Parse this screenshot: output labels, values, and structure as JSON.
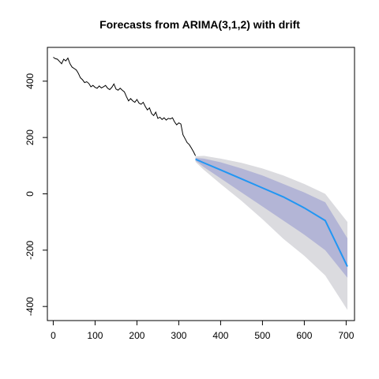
{
  "chart_data": {
    "type": "line",
    "title": "Forecasts from ARIMA(3,1,2) with drift",
    "xlabel": "",
    "ylabel": "",
    "xlim": [
      -14,
      720
    ],
    "ylim": [
      -450,
      520
    ],
    "x_ticks": [
      0,
      100,
      200,
      300,
      400,
      500,
      600,
      700
    ],
    "y_ticks": [
      -400,
      -200,
      0,
      200,
      400
    ],
    "grid": false,
    "legend": "none",
    "colors": {
      "history": "#000000",
      "forecast_mean": "#2196F3",
      "band_95": "#DBDBDF",
      "band_80": "#B3B5D6"
    },
    "history": {
      "x": [
        0,
        5,
        10,
        15,
        20,
        25,
        30,
        35,
        40,
        45,
        50,
        55,
        60,
        65,
        70,
        75,
        80,
        85,
        90,
        95,
        100,
        105,
        110,
        115,
        120,
        125,
        130,
        135,
        140,
        145,
        150,
        155,
        160,
        165,
        170,
        175,
        180,
        185,
        190,
        195,
        200,
        205,
        210,
        215,
        220,
        225,
        230,
        235,
        240,
        245,
        250,
        255,
        260,
        265,
        270,
        275,
        280,
        285,
        290,
        295,
        300,
        305,
        310,
        315,
        320,
        325,
        330,
        335,
        340
      ],
      "y": [
        485,
        480,
        478,
        470,
        462,
        478,
        472,
        482,
        462,
        450,
        445,
        440,
        428,
        412,
        405,
        395,
        398,
        392,
        380,
        385,
        378,
        375,
        383,
        376,
        380,
        385,
        375,
        370,
        378,
        390,
        372,
        368,
        375,
        368,
        362,
        345,
        330,
        338,
        330,
        325,
        335,
        322,
        318,
        325,
        310,
        298,
        305,
        285,
        278,
        290,
        268,
        272,
        264,
        270,
        262,
        268,
        266,
        270,
        255,
        245,
        252,
        248,
        210,
        196,
        182,
        175,
        163,
        150,
        135
      ]
    },
    "forecast": {
      "x": [
        340,
        360,
        400,
        450,
        500,
        550,
        600,
        650,
        703
      ],
      "mean": [
        123,
        110,
        85,
        53,
        21,
        -11,
        -50,
        -95,
        -258
      ],
      "lo80": [
        118,
        95,
        55,
        5,
        -45,
        -95,
        -145,
        -200,
        -298
      ],
      "hi80": [
        128,
        125,
        112,
        90,
        65,
        35,
        5,
        -30,
        -158
      ],
      "lo95": [
        113,
        85,
        35,
        -25,
        -90,
        -160,
        -220,
        -290,
        -412
      ],
      "hi95": [
        133,
        135,
        125,
        110,
        90,
        65,
        35,
        0,
        -100
      ]
    }
  }
}
